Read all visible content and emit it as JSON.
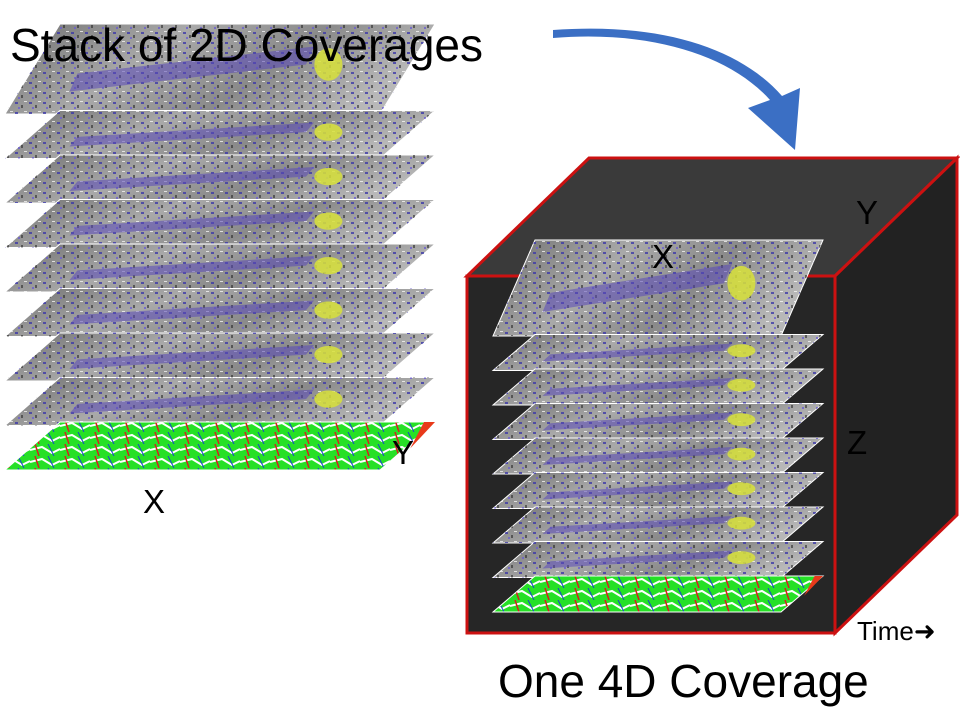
{
  "title": "Stack of 2D Coverages",
  "caption": "One 4D Coverage",
  "left_stack": {
    "x_label": "X",
    "y_label": "Y",
    "layer_count": 9
  },
  "cube": {
    "x_label": "X",
    "y_label": "Y",
    "z_label": "Z",
    "time_label": "Time",
    "layer_count": 9,
    "edge_color": "#cc1111",
    "face_color": "#262626"
  },
  "colors": {
    "arrow": "#3b6fc4",
    "layer_gray": "#8e8e8e",
    "layer_purple": "#5a48b8",
    "layer_green": "#22dd22",
    "layer_red": "#e83a1a"
  }
}
